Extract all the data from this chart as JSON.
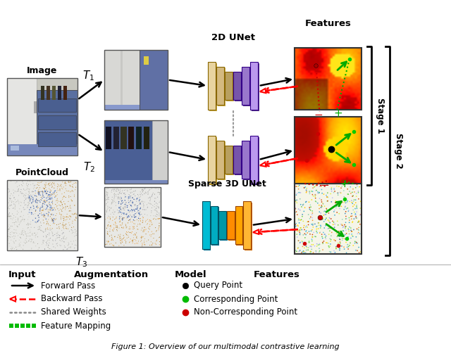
{
  "figsize": [
    6.4,
    5.16
  ],
  "dpi": 100,
  "bg": "#ffffff",
  "caption": "Figure 1: Overview of our multimodal contrastive learning",
  "labels": {
    "image": "Image",
    "point_cloud": "PointCloud",
    "unet2d": "2D UNet",
    "unet3d": "Sparse 3D UNet",
    "t1": "$T_1$",
    "t2": "$T_2$",
    "t3": "$T_3$",
    "stage1": "Stage 1",
    "stage2": "Stage 2",
    "input": "Input",
    "augmentation": "Augmentation",
    "model": "Model",
    "features": "Features",
    "forward_pass": "Forward Pass",
    "backward_pass": "Backward Pass",
    "shared_weights": "Shared Weights",
    "feature_mapping": "Feature Mapping",
    "query_point": "Query Point",
    "corresponding_point": "Corresponding Point",
    "non_corresponding_point": "Non-Corresponding Point"
  }
}
